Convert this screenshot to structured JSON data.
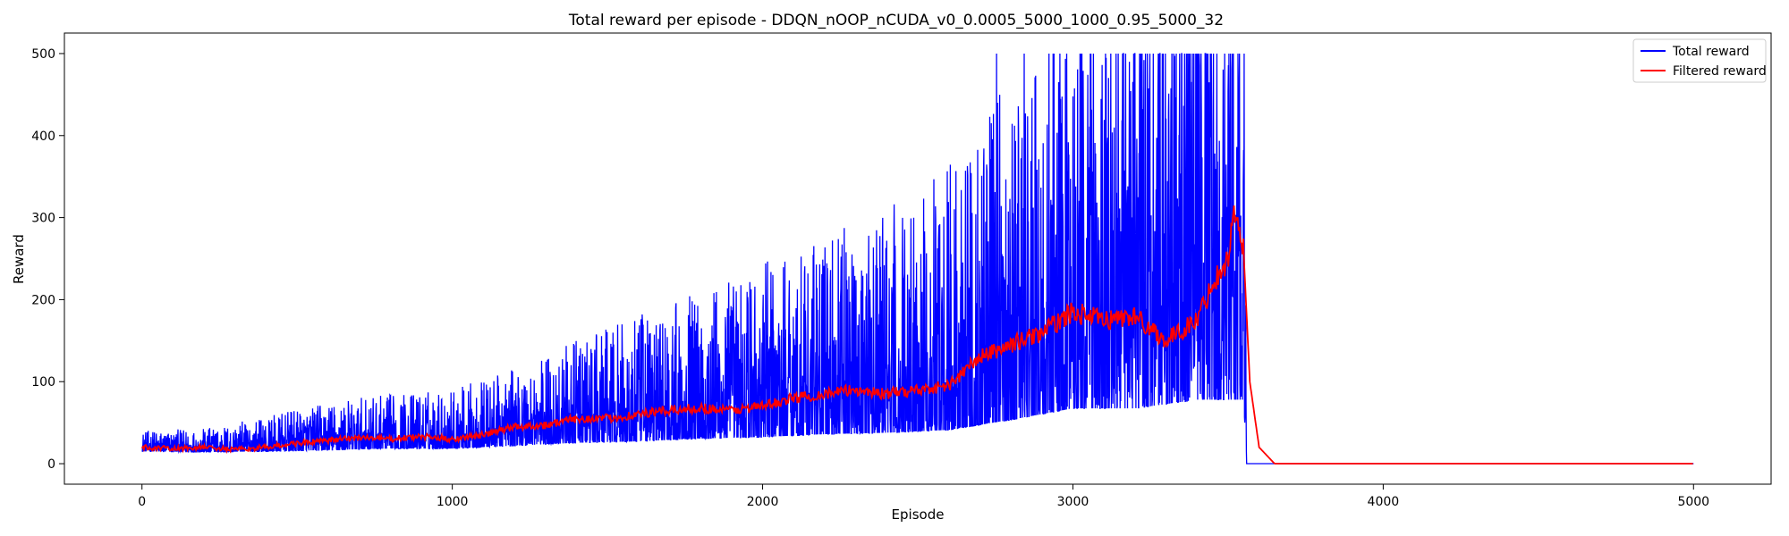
{
  "chart_data": {
    "type": "line",
    "title": "Total reward per episode - DDQN_nOOP_nCUDA_v0_0.0005_5000_1000_0.95_5000_32",
    "xlabel": "Episode",
    "ylabel": "Reward",
    "xlim": [
      -250,
      5250
    ],
    "ylim": [
      -25,
      525
    ],
    "xticks": [
      0,
      1000,
      2000,
      3000,
      4000,
      5000
    ],
    "yticks": [
      0,
      100,
      200,
      300,
      400,
      500
    ],
    "legend_position": "top-right",
    "series": [
      {
        "name": "Total reward",
        "color": "#0000ff",
        "description": "noisy raw reward; low early, rising with high variance, hits cap 500 frequently near 2800-3550, drops to 0 after ~3560",
        "anchors": {
          "episode": [
            0,
            200,
            400,
            600,
            800,
            1000,
            1200,
            1400,
            1600,
            1800,
            2000,
            2200,
            2400,
            2600,
            2800,
            3000,
            3200,
            3400,
            3550,
            3560,
            5000
          ],
          "trend": [
            20,
            18,
            20,
            25,
            30,
            30,
            40,
            50,
            55,
            65,
            70,
            80,
            85,
            95,
            130,
            170,
            170,
            200,
            200,
            0,
            0
          ],
          "spread": [
            8,
            10,
            15,
            20,
            22,
            25,
            30,
            40,
            50,
            60,
            70,
            80,
            90,
            110,
            140,
            160,
            170,
            190,
            200,
            0,
            0
          ]
        }
      },
      {
        "name": "Filtered reward",
        "color": "#ff0000",
        "description": "smoothed reward, peaks ~310 near episode 3520, decays to 0 by ~3650",
        "anchors": {
          "episode": [
            0,
            100,
            200,
            300,
            400,
            500,
            600,
            700,
            800,
            900,
            1000,
            1100,
            1200,
            1300,
            1400,
            1500,
            1600,
            1700,
            1800,
            1900,
            2000,
            2100,
            2200,
            2300,
            2400,
            2500,
            2600,
            2700,
            2800,
            2900,
            3000,
            3100,
            3200,
            3300,
            3400,
            3450,
            3500,
            3520,
            3550,
            3570,
            3600,
            3650,
            5000
          ],
          "value": [
            20,
            18,
            20,
            17,
            20,
            25,
            28,
            32,
            30,
            33,
            30,
            35,
            45,
            47,
            55,
            55,
            60,
            65,
            68,
            65,
            70,
            80,
            85,
            90,
            85,
            90,
            95,
            130,
            145,
            160,
            185,
            175,
            180,
            150,
            175,
            220,
            250,
            310,
            260,
            100,
            20,
            0,
            0
          ]
        }
      }
    ]
  }
}
